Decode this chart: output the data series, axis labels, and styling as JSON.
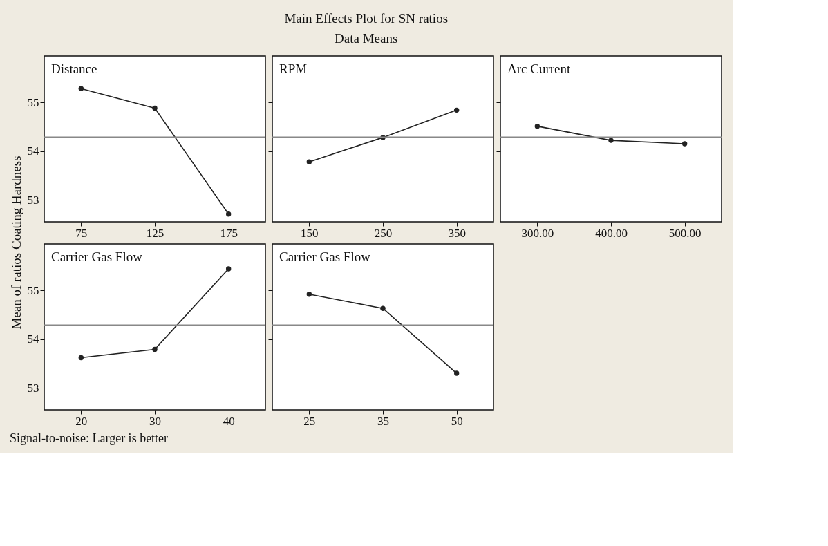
{
  "chart_data": [
    {
      "type": "line",
      "title": "Distance",
      "categories": [
        "75",
        "125",
        "175"
      ],
      "series": [
        {
          "color": "#222222",
          "values": [
            55.28,
            54.88,
            52.71
          ]
        }
      ],
      "ylim": [
        52.55,
        55.95
      ],
      "yticks": [
        53,
        54,
        55
      ],
      "ref_lines": [
        {
          "axis": "y",
          "value": 54.29,
          "color": "#888888"
        }
      ],
      "marker": "circle",
      "grid": false,
      "line_style": "solid",
      "ylabel": "Mean of ratios Coating Hardness",
      "annotations": [
        "Main Effects Plot for SN ratios",
        "Data Means",
        "Signal-to-noise: Larger is better"
      ]
    },
    {
      "type": "line",
      "title": "RPM",
      "categories": [
        "150",
        "250",
        "350"
      ],
      "series": [
        {
          "color": "#222222",
          "values": [
            53.78,
            54.28,
            54.84
          ]
        }
      ],
      "ylim": [
        52.55,
        55.95
      ],
      "yticks": [
        53,
        54,
        55
      ],
      "ref_lines": [
        {
          "axis": "y",
          "value": 54.29,
          "color": "#888888"
        }
      ],
      "marker": "circle",
      "grid": false,
      "line_style": "solid",
      "tick_labels": "x"
    },
    {
      "type": "line",
      "title": "Arc Current",
      "categories": [
        "300.00",
        "400.00",
        "500.00"
      ],
      "series": [
        {
          "color": "#222222",
          "values": [
            54.51,
            54.22,
            54.15
          ]
        }
      ],
      "ylim": [
        52.55,
        55.95
      ],
      "yticks": [
        53,
        54,
        55
      ],
      "ref_lines": [
        {
          "axis": "y",
          "value": 54.29,
          "color": "#888888"
        }
      ],
      "marker": "circle",
      "grid": false,
      "line_style": "solid",
      "tick_labels": "x"
    },
    {
      "type": "line",
      "title": "Carrier Gas Flow",
      "categories": [
        "20",
        "30",
        "40"
      ],
      "series": [
        {
          "color": "#222222",
          "values": [
            53.62,
            53.79,
            55.44
          ]
        }
      ],
      "ylim": [
        52.55,
        55.95
      ],
      "yticks": [
        53,
        54,
        55
      ],
      "ref_lines": [
        {
          "axis": "y",
          "value": 54.29,
          "color": "#888888"
        }
      ],
      "marker": "circle",
      "grid": false,
      "line_style": "solid"
    },
    {
      "type": "line",
      "title": "Carrier Gas Flow",
      "categories": [
        "25",
        "35",
        "50"
      ],
      "series": [
        {
          "color": "#222222",
          "values": [
            54.92,
            54.63,
            53.3
          ]
        }
      ],
      "ylim": [
        52.55,
        55.95
      ],
      "yticks": [
        53,
        54,
        55
      ],
      "ref_lines": [
        {
          "axis": "y",
          "value": 54.29,
          "color": "#888888"
        }
      ],
      "marker": "circle",
      "grid": false,
      "line_style": "solid",
      "tick_labels": "x"
    }
  ]
}
